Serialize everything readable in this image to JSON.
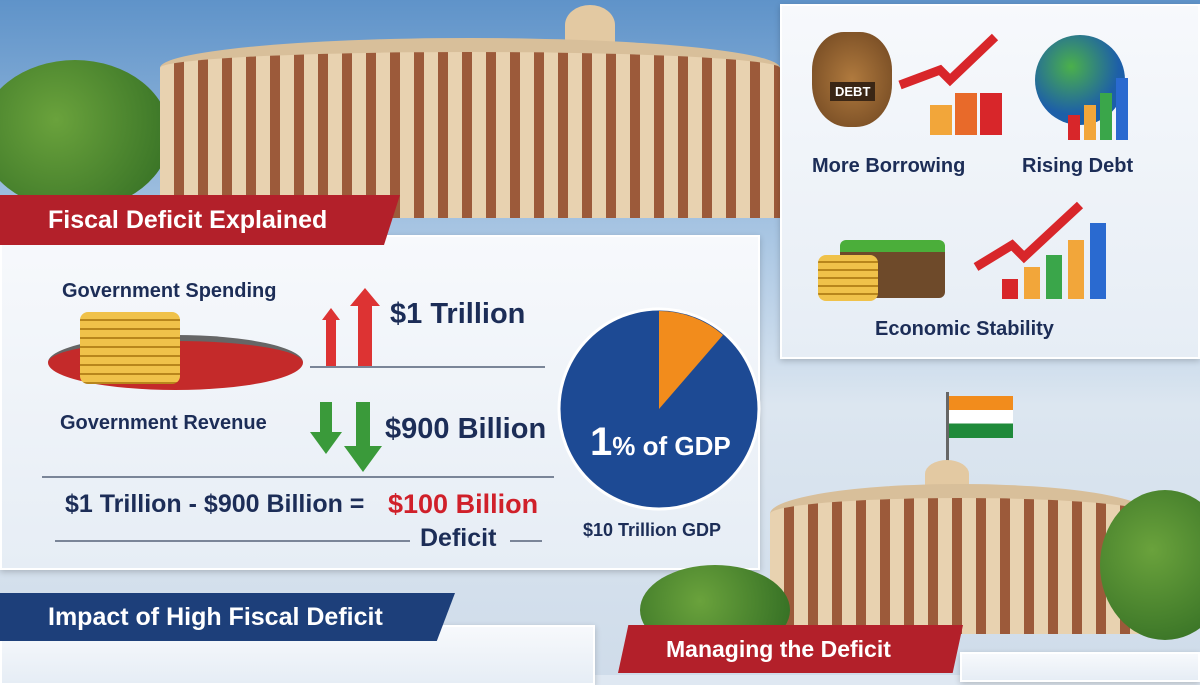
{
  "title_banner": "Fiscal Deficit Explained",
  "spending": {
    "label": "Government Spending",
    "value": "$1 Trillion"
  },
  "revenue": {
    "label": "Government Revenue",
    "value": "$900 Billion"
  },
  "equation": {
    "left": "$1 Trillion - $900 Billion =",
    "result": "$100 Billion",
    "caption": "Deficit"
  },
  "pie": {
    "label_big": "1",
    "label_rest": "% of GDP",
    "caption": "$10 Trillion GDP",
    "colors": {
      "main": "#1d4a94",
      "slice": "#f28c1c"
    }
  },
  "impacts": {
    "items": [
      {
        "label": "More Borrowing",
        "icon": "debt-bag-icon",
        "badge": "DEBT"
      },
      {
        "label": "Rising Debt",
        "icon": "globe-chart-icon"
      },
      {
        "label": "Economic Stability",
        "icon": "wallet-growth-icon"
      }
    ]
  },
  "impact_banner": "Impact of High Fiscal Deficit",
  "managing_banner": "Managing the Deficit",
  "colors": {
    "red_banner": "#b3202a",
    "blue_banner": "#1d3f7a",
    "navy_text": "#1c2d57",
    "deficit_red": "#d0202a"
  }
}
